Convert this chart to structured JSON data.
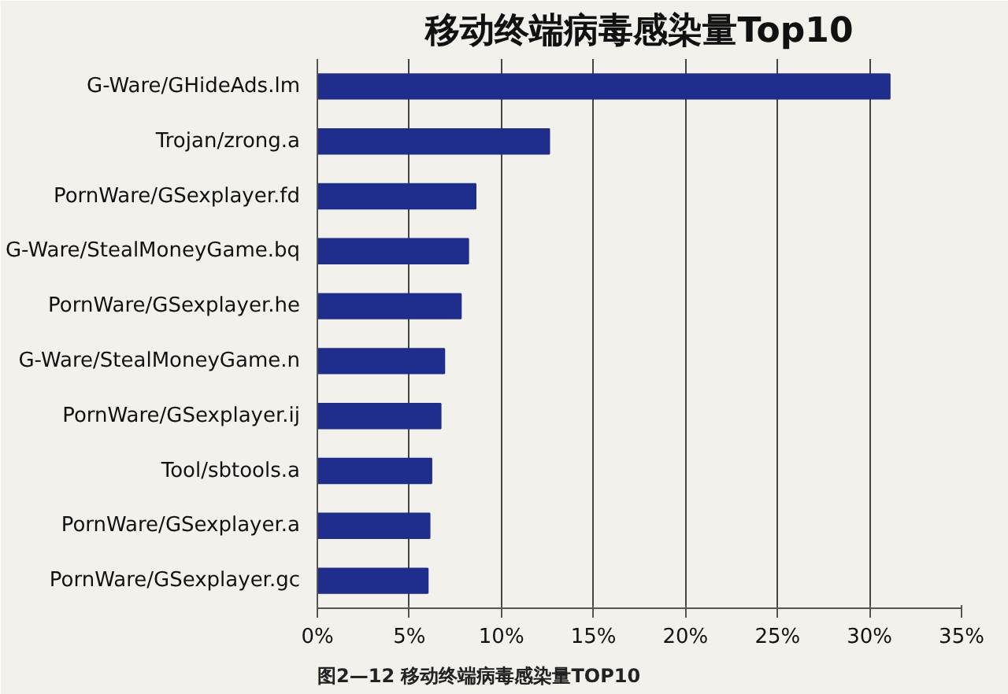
{
  "chart_data": {
    "type": "bar",
    "orientation": "horizontal",
    "title": "移动终端病毒感染量Top10",
    "categories": [
      "G-Ware/GHideAds.lm",
      "Trojan/zrong.a",
      "PornWare/GSexplayer.fd",
      "G-Ware/StealMoneyGame.bq",
      "PornWare/GSexplayer.he",
      "G-Ware/StealMoneyGame.n",
      "PornWare/GSexplayer.ij",
      "Tool/sbtools.a",
      "PornWare/GSexplayer.a",
      "PornWare/GSexplayer.gc"
    ],
    "values": [
      31.1,
      12.6,
      8.6,
      8.2,
      7.8,
      6.9,
      6.7,
      6.2,
      6.1,
      6.0
    ],
    "color": "#1f2d8c",
    "xlim": [
      0,
      35
    ],
    "xticks": [
      {
        "value": 0,
        "label": "0%"
      },
      {
        "value": 5,
        "label": "5%"
      },
      {
        "value": 10,
        "label": "10%"
      },
      {
        "value": 15,
        "label": "15%"
      },
      {
        "value": 20,
        "label": "20%"
      },
      {
        "value": 25,
        "label": "25%"
      },
      {
        "value": 30,
        "label": "30%"
      },
      {
        "value": 35,
        "label": "35%"
      }
    ],
    "grid": "x",
    "annotations": [
      "图2—12 移动终端病毒感染量TOP10"
    ]
  }
}
